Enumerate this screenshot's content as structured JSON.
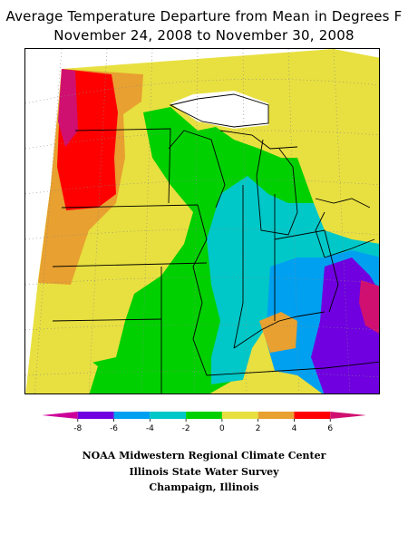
{
  "title": {
    "line1": "Average Temperature Departure from Mean in Degrees F",
    "line2": "November 24, 2008 to November 30, 2008"
  },
  "legend": {
    "bins": [
      {
        "from": -10,
        "to": -8,
        "color": "#cc0099"
      },
      {
        "from": -8,
        "to": -6,
        "color": "#7000e0"
      },
      {
        "from": -6,
        "to": -4,
        "color": "#00a0f0"
      },
      {
        "from": -4,
        "to": -2,
        "color": "#00c8c8"
      },
      {
        "from": -2,
        "to": 0,
        "color": "#00d000"
      },
      {
        "from": 0,
        "to": 2,
        "color": "#e8e040"
      },
      {
        "from": 2,
        "to": 4,
        "color": "#e8a030"
      },
      {
        "from": 4,
        "to": 6,
        "color": "#ff0000"
      },
      {
        "from": 6,
        "to": 8,
        "color": "#d01070"
      }
    ],
    "tick_labels": [
      "-8",
      "-6",
      "-4",
      "-2",
      "0",
      "2",
      "4",
      "6"
    ]
  },
  "map": {
    "variable": "temperature departure",
    "units": "°F",
    "colors": {
      "cold_extreme": "#7000e0",
      "cold_strong": "#00a0f0",
      "cold_mild": "#00c8c8",
      "near_normal_cool": "#00d000",
      "near_normal_warm": "#e8e040",
      "warm_mild": "#e8a030",
      "warm_strong": "#ff0000",
      "warm_extreme": "#d01070"
    }
  },
  "credits": {
    "line1": "NOAA Midwestern Regional Climate Center",
    "line2": "Illinois State Water Survey",
    "line3": "Champaign, Illinois"
  }
}
